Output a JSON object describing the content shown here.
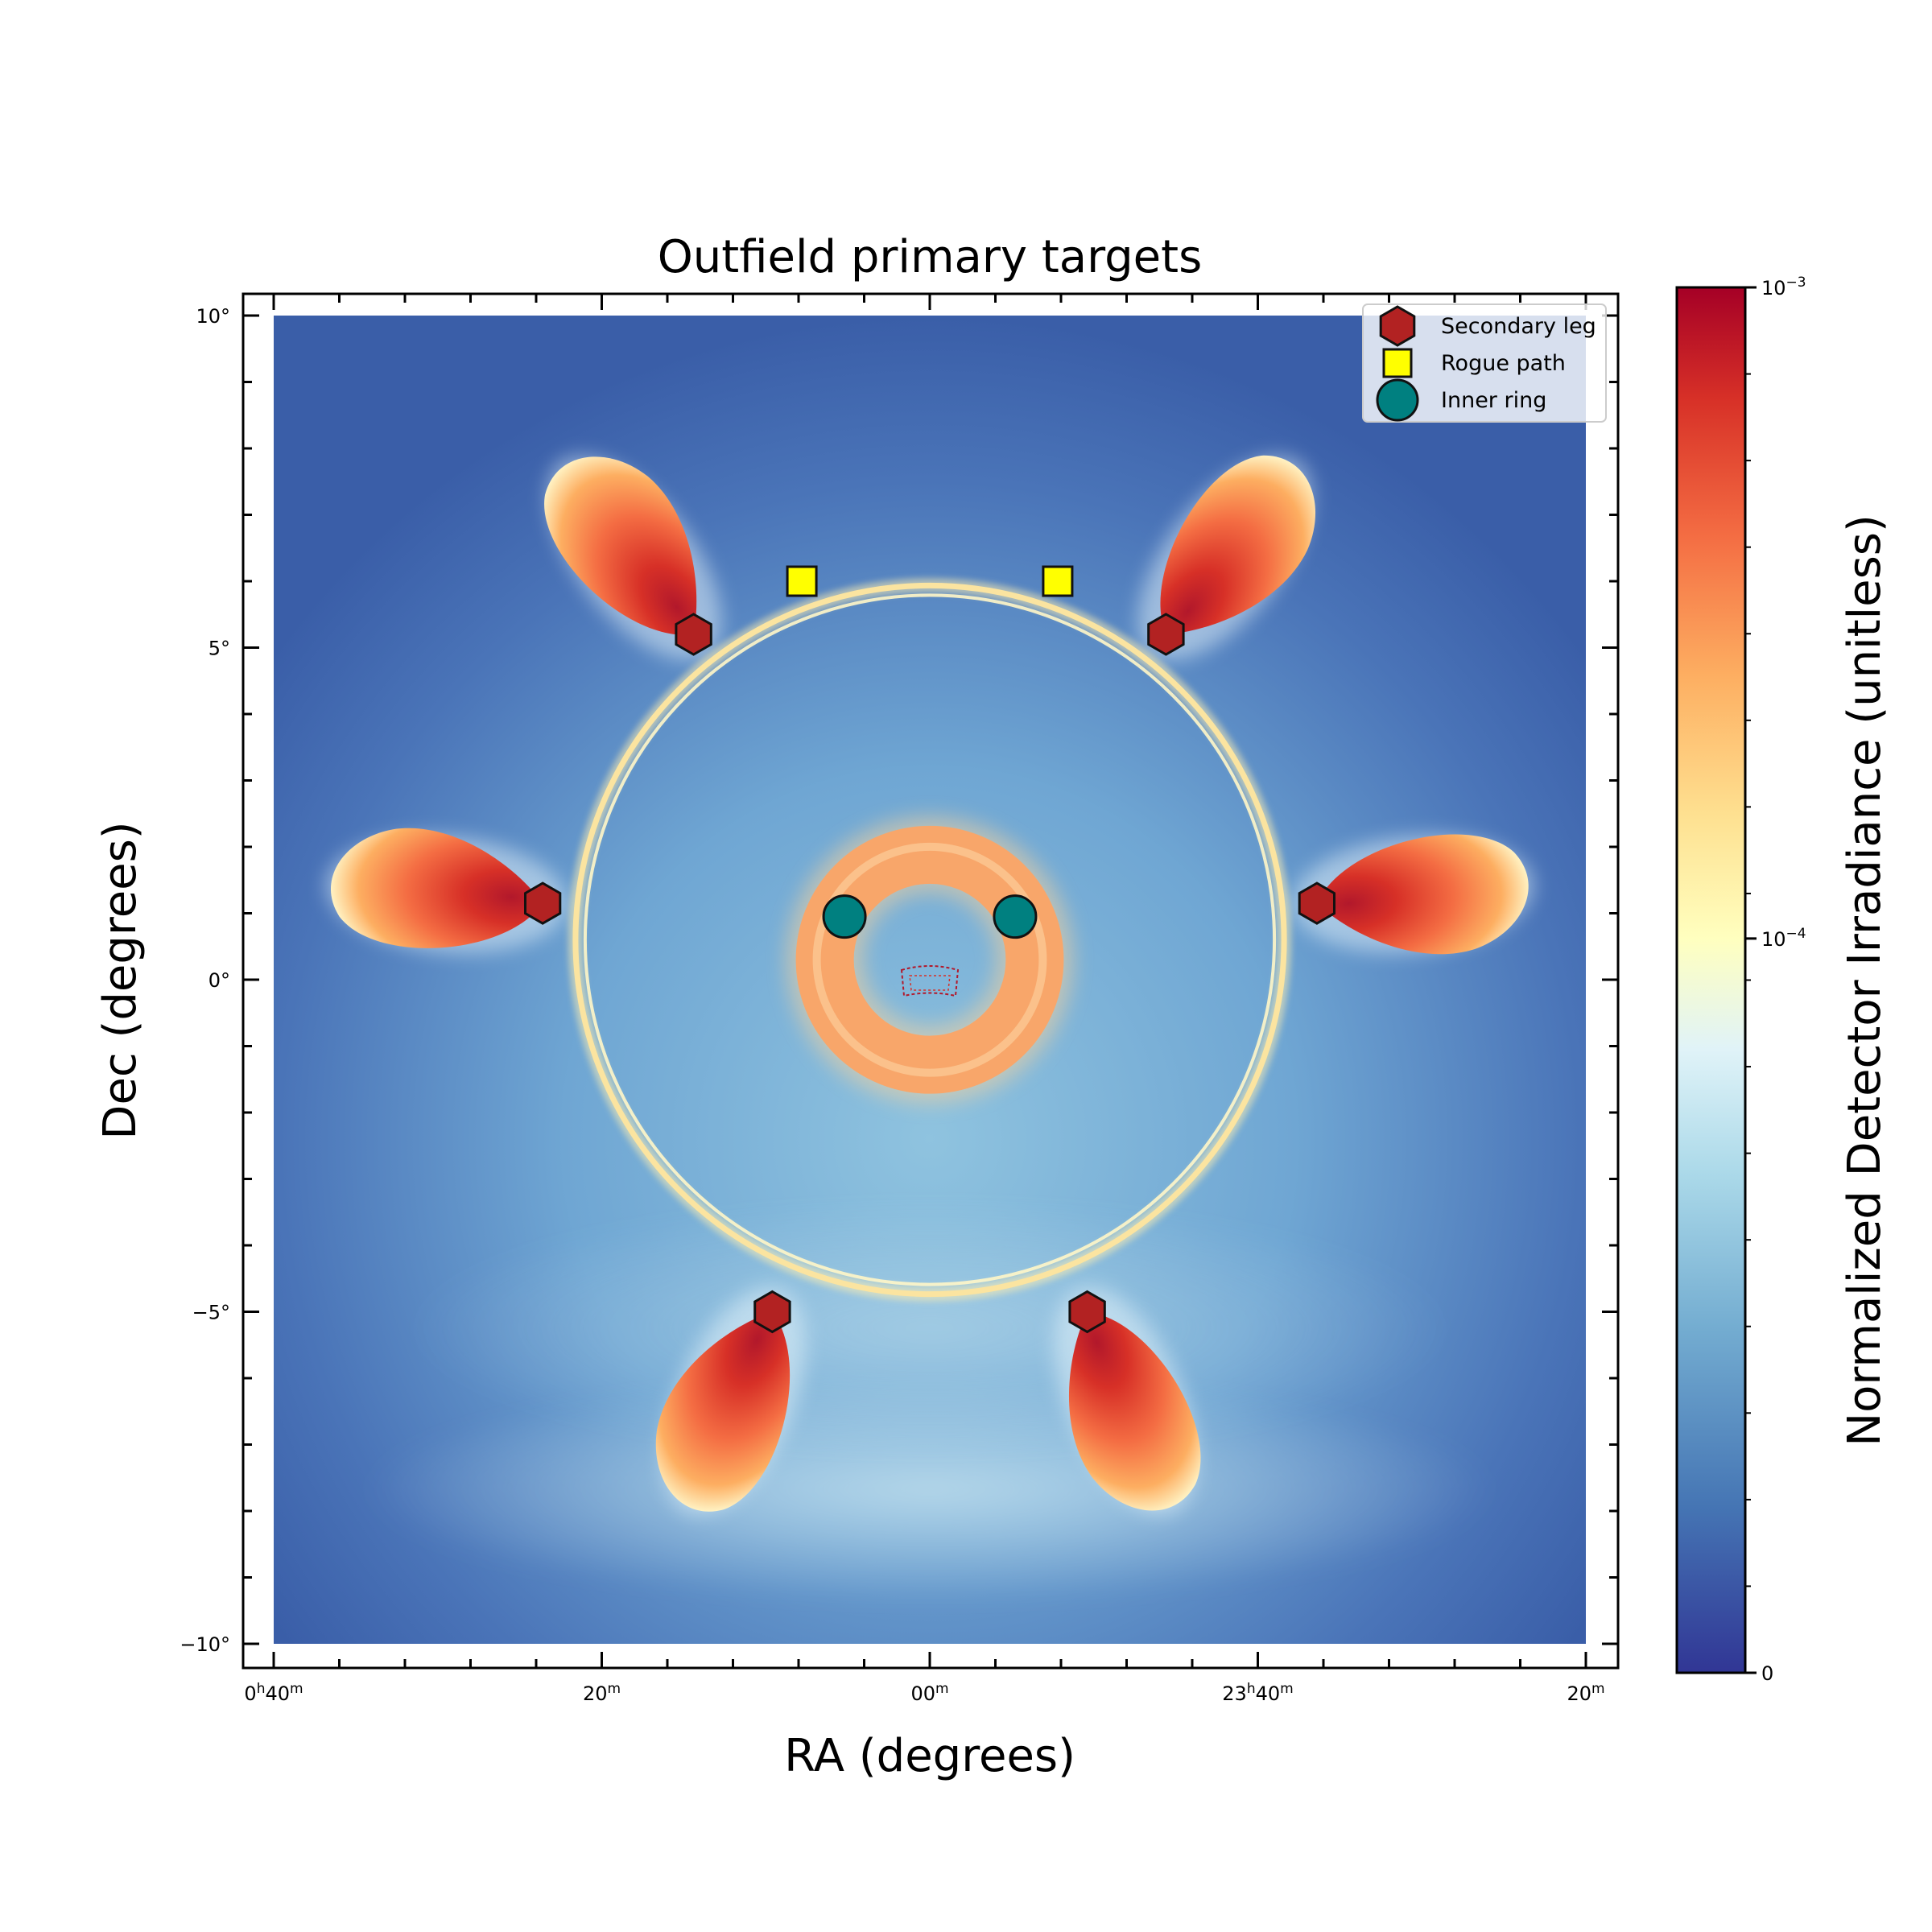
{
  "chart_data": {
    "type": "heatmap",
    "title": "Outfield primary targets",
    "xlabel": "RA (degrees)",
    "ylabel": "Dec (degrees)",
    "xlim": [
      10,
      -10
    ],
    "ylim": [
      -10,
      10
    ],
    "x_ticks": [
      {
        "value": 10,
        "hours": "0",
        "minutes": "40",
        "label": "0h40m"
      },
      {
        "value": 5,
        "hours": "",
        "minutes": "20",
        "label": "20m"
      },
      {
        "value": 0,
        "hours": "",
        "minutes": "00",
        "label": "00m"
      },
      {
        "value": -5,
        "hours": "23",
        "minutes": "40",
        "label": "23h40m"
      },
      {
        "value": -10,
        "hours": "",
        "minutes": "20",
        "label": "20m"
      }
    ],
    "y_ticks": [
      {
        "value": 10,
        "label": "10°"
      },
      {
        "value": 5,
        "label": "5°"
      },
      {
        "value": 0,
        "label": "0°"
      },
      {
        "value": -5,
        "label": "−5°"
      },
      {
        "value": -10,
        "label": "−10°"
      }
    ],
    "colorbar": {
      "label": "Normalized Detector Irradiance (unitless)",
      "scale": "log",
      "ticks": [
        {
          "value": 0.001,
          "base": "10",
          "exp": "−3"
        },
        {
          "value": 0.0001,
          "base": "10",
          "exp": "−4"
        },
        {
          "value": 0,
          "base": "0",
          "exp": ""
        }
      ],
      "colormap": [
        "#313695",
        "#4575b4",
        "#74add1",
        "#abd9e9",
        "#e0f3f8",
        "#ffffbf",
        "#fee090",
        "#fdae61",
        "#f46d43",
        "#d73027",
        "#a50026"
      ]
    },
    "legend": {
      "position": "upper-right",
      "entries": [
        {
          "name": "Secondary leg",
          "marker": "hexagon",
          "color": "#b22222"
        },
        {
          "name": "Rogue path",
          "marker": "square",
          "color": "#ffff00"
        },
        {
          "name": "Inner ring",
          "marker": "circle",
          "color": "#008080"
        }
      ]
    },
    "series": [
      {
        "name": "Secondary leg",
        "marker": "hexagon",
        "color": "#b22222",
        "points": [
          [
            3.6,
            5.2
          ],
          [
            -3.6,
            5.2
          ],
          [
            5.9,
            1.15
          ],
          [
            -5.9,
            1.15
          ],
          [
            2.4,
            -5.0
          ],
          [
            -2.4,
            -5.0
          ]
        ]
      },
      {
        "name": "Rogue path",
        "marker": "square",
        "color": "#ffff00",
        "points": [
          [
            1.95,
            6.0
          ],
          [
            -1.95,
            6.0
          ]
        ]
      },
      {
        "name": "Inner ring",
        "marker": "circle",
        "color": "#008080",
        "points": [
          [
            1.3,
            0.95
          ],
          [
            -1.3,
            0.95
          ]
        ]
      }
    ],
    "features": {
      "outer_ring": {
        "center": [
          0,
          0.6
        ],
        "radius": 5.4
      },
      "inner_ring": {
        "center": [
          0,
          0.3
        ],
        "radius": 1.6
      },
      "background_color": "#3a5ea8"
    }
  }
}
